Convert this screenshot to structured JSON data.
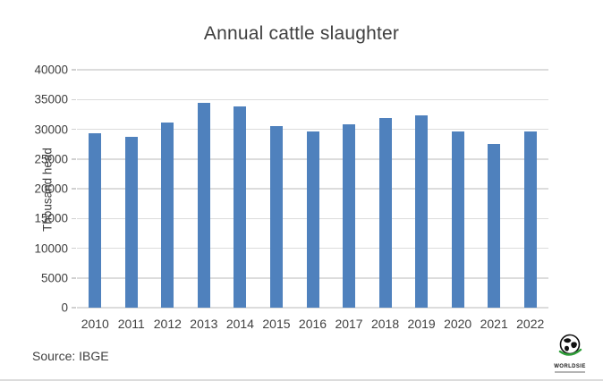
{
  "chart_data": {
    "type": "bar",
    "title": "Annual cattle slaughter",
    "xlabel": "",
    "ylabel": "Thousand head",
    "categories": [
      "2010",
      "2011",
      "2012",
      "2013",
      "2014",
      "2015",
      "2016",
      "2017",
      "2018",
      "2019",
      "2020",
      "2021",
      "2022"
    ],
    "values": [
      29300,
      28700,
      31100,
      34400,
      33900,
      30600,
      29700,
      30800,
      31900,
      32400,
      29700,
      27500,
      29700
    ],
    "ylim": [
      0,
      40000
    ],
    "yticks": [
      0,
      5000,
      10000,
      15000,
      20000,
      25000,
      30000,
      35000,
      40000
    ],
    "grid": "horizontal",
    "legend": "none",
    "bar_color": "#4f81bd",
    "gridline_color": "#dcdcdc"
  },
  "source": {
    "label": "Source: IBGE"
  },
  "logo": {
    "text": "WORLDSIE",
    "globe_color": "#111111",
    "swoosh_color": "#2e9e38"
  }
}
